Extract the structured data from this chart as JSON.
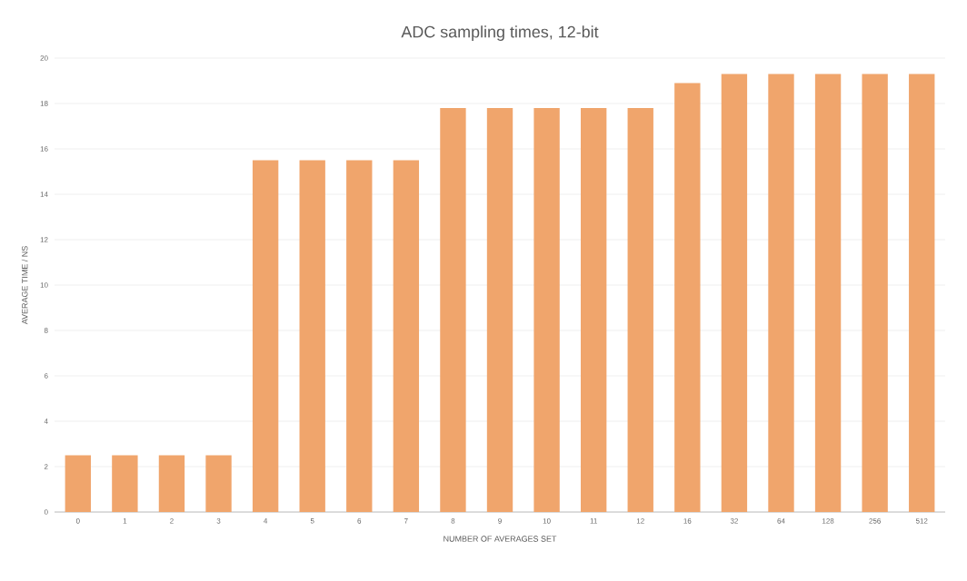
{
  "chart_data": {
    "type": "bar",
    "title": "ADC sampling times, 12-bit",
    "xlabel": "NUMBER OF AVERAGES SET",
    "ylabel": "AVERAGE TIME / NS",
    "categories": [
      "0",
      "1",
      "2",
      "3",
      "4",
      "5",
      "6",
      "7",
      "8",
      "9",
      "10",
      "11",
      "12",
      "16",
      "32",
      "64",
      "128",
      "256",
      "512"
    ],
    "series": [
      {
        "color": "#f0a56c",
        "values": [
          2.5,
          2.5,
          2.5,
          2.5,
          15.5,
          15.5,
          15.5,
          15.5,
          17.8,
          17.8,
          17.8,
          17.8,
          17.8,
          18.9,
          19.3,
          19.3,
          19.3,
          19.3,
          19.3
        ]
      }
    ],
    "ylim": [
      0,
      20
    ],
    "yticks": [
      0,
      2,
      4,
      6,
      8,
      10,
      12,
      14,
      16,
      18,
      20
    ],
    "grid": "y"
  }
}
